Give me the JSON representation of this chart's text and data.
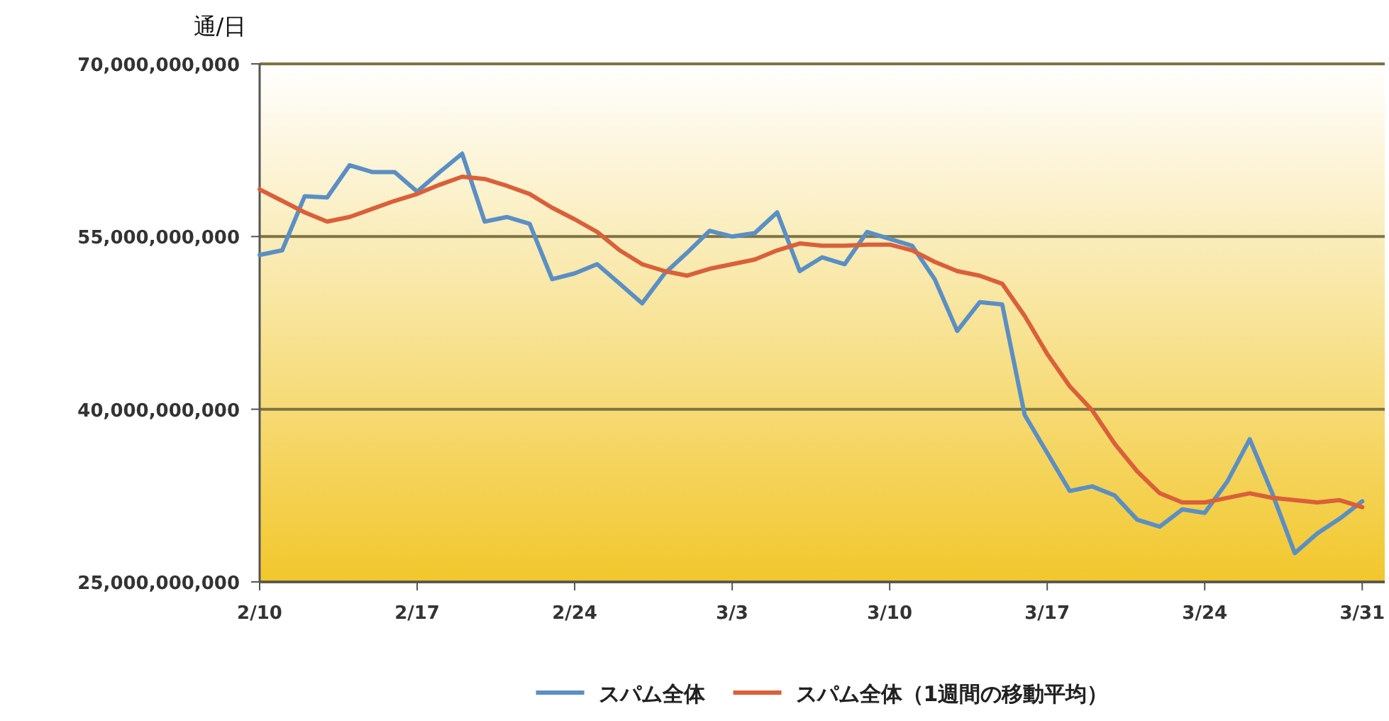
{
  "chart_data": {
    "type": "line",
    "ylabel": "通/日",
    "x": [
      "--02-10",
      "--02-11",
      "--02-12",
      "--02-13",
      "--02-14",
      "--02-15",
      "--02-16",
      "--02-17",
      "--02-18",
      "--02-19",
      "--02-20",
      "--02-21",
      "--02-22",
      "--02-23",
      "--02-24",
      "--02-25",
      "--02-26",
      "--02-27",
      "--02-28",
      "--03-01",
      "--03-02",
      "--03-03",
      "--03-04",
      "--03-05",
      "--03-06",
      "--03-07",
      "--03-08",
      "--03-09",
      "--03-10",
      "--03-11",
      "--03-12",
      "--03-13",
      "--03-14",
      "--03-15",
      "--03-16",
      "--03-17",
      "--03-18",
      "--03-19",
      "--03-20",
      "--03-21",
      "--03-22",
      "--03-23",
      "--03-24",
      "--03-25",
      "--03-26",
      "--03-27",
      "--03-28",
      "--03-29",
      "--03-30",
      "--03-31"
    ],
    "series": [
      {
        "name": "スパム全体",
        "color": "#5b8fc4",
        "values": [
          53400000000.0,
          53800000000.0,
          58500000000.0,
          58400000000.0,
          61200000000.0,
          60600000000.0,
          60600000000.0,
          58900000000.0,
          60600000000.0,
          62200000000.0,
          56300000000.0,
          56700000000.0,
          56100000000.0,
          51300000000.0,
          51800000000.0,
          52600000000.0,
          50900000000.0,
          49200000000.0,
          51800000000.0,
          53600000000.0,
          55500000000.0,
          55000000000.0,
          55300000000.0,
          57100000000.0,
          52000000000.0,
          53200000000.0,
          52600000000.0,
          55400000000.0,
          54800000000.0,
          54200000000.0,
          51300000000.0,
          46800000000.0,
          49300000000.0,
          49100000000.0,
          39500000000.0,
          36200000000.0,
          32900000000.0,
          33300000000.0,
          32500000000.0,
          30400000000.0,
          29800000000.0,
          31300000000.0,
          31000000000.0,
          33700000000.0,
          37400000000.0,
          32700000000.0,
          27500000000.0,
          29200000000.0,
          30500000000.0,
          32000000000.0
        ]
      },
      {
        "name": "スパム全体（1週間の移動平均）",
        "color": "#d9603a",
        "values": [
          59100000000.0,
          58100000000.0,
          57100000000.0,
          56300000000.0,
          56700000000.0,
          57400000000.0,
          58100000000.0,
          58700000000.0,
          59500000000.0,
          60200000000.0,
          60000000000.0,
          59400000000.0,
          58700000000.0,
          57500000000.0,
          56500000000.0,
          55400000000.0,
          53800000000.0,
          52600000000.0,
          52000000000.0,
          51600000000.0,
          52200000000.0,
          52600000000.0,
          53000000000.0,
          53800000000.0,
          54400000000.0,
          54200000000.0,
          54200000000.0,
          54300000000.0,
          54300000000.0,
          53800000000.0,
          52800000000.0,
          52000000000.0,
          51600000000.0,
          50900000000.0,
          48100000000.0,
          44800000000.0,
          42000000000.0,
          39900000000.0,
          37000000000.0,
          34600000000.0,
          32700000000.0,
          31900000000.0,
          31900000000.0,
          32300000000.0,
          32700000000.0,
          32300000000.0,
          32100000000.0,
          31900000000.0,
          32100000000.0,
          31500000000.0
        ]
      }
    ],
    "xlim": [
      "--02-10",
      "--04-01"
    ],
    "xticks": [
      {
        "value": "--02-10",
        "label": "2/10"
      },
      {
        "value": "--02-17",
        "label": "2/17"
      },
      {
        "value": "--02-24",
        "label": "2/24"
      },
      {
        "value": "--03-03",
        "label": "3/3"
      },
      {
        "value": "--03-10",
        "label": "3/10"
      },
      {
        "value": "--03-17",
        "label": "3/17"
      },
      {
        "value": "--03-24",
        "label": "3/24"
      },
      {
        "value": "--03-31",
        "label": "3/31"
      }
    ],
    "ylim": [
      25000000000.0,
      70000000000.0
    ],
    "yticks": [
      {
        "value": 25000000000.0,
        "label": "25,000,000,000"
      },
      {
        "value": 40000000000.0,
        "label": "40,000,000,000"
      },
      {
        "value": 55000000000.0,
        "label": "55,000,000,000"
      },
      {
        "value": 70000000000.0,
        "label": "70,000,000,000"
      }
    ],
    "grid": "y",
    "legend": "bottom",
    "line_style": "solid",
    "marker": "none"
  }
}
